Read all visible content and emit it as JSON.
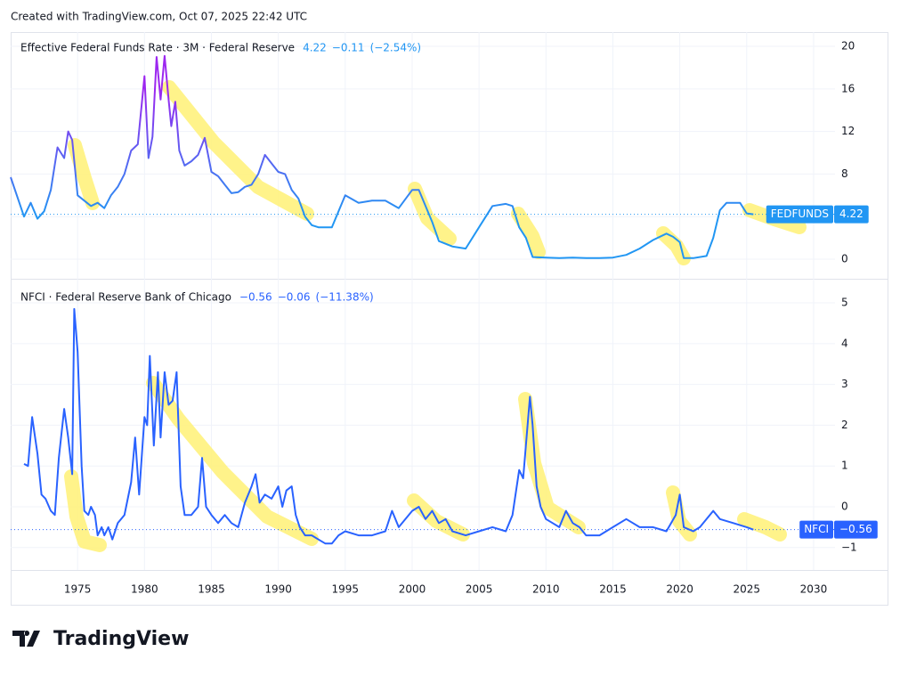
{
  "header": {
    "text": "Created with TradingView.com, Oct 07, 2025 22:42 UTC"
  },
  "footer": {
    "brand": "TradingView"
  },
  "chart_data": [
    {
      "type": "line",
      "title": "Effective Federal Funds Rate · 3M · Federal Reserve",
      "last_value": 4.22,
      "change": "−0.11",
      "change_pct": "(−2.54%)",
      "tag": "FEDFUNDS",
      "gradient": [
        "#2196f3",
        "#9c27f0"
      ],
      "x": [
        1970.0,
        1971.0,
        1971.5,
        1972.0,
        1972.5,
        1973.0,
        1973.5,
        1974.0,
        1974.3,
        1974.6,
        1975.0,
        1975.5,
        1976.0,
        1976.5,
        1977.0,
        1977.5,
        1978.0,
        1978.5,
        1979.0,
        1979.5,
        1980.0,
        1980.3,
        1980.6,
        1980.9,
        1981.2,
        1981.5,
        1981.8,
        1982.0,
        1982.3,
        1982.6,
        1983.0,
        1983.5,
        1984.0,
        1984.5,
        1985.0,
        1985.5,
        1986.0,
        1986.5,
        1987.0,
        1987.5,
        1988.0,
        1988.5,
        1989.0,
        1989.5,
        1990.0,
        1990.5,
        1991.0,
        1991.5,
        1992.0,
        1992.5,
        1993.0,
        1994.0,
        1994.5,
        1995.0,
        1996.0,
        1997.0,
        1998.0,
        1999.0,
        2000.0,
        2000.5,
        2001.0,
        2001.5,
        2002.0,
        2003.0,
        2004.0,
        2005.0,
        2006.0,
        2007.0,
        2007.5,
        2008.0,
        2008.5,
        2009.0,
        2010.0,
        2011.0,
        2012.0,
        2013.0,
        2014.0,
        2015.0,
        2016.0,
        2017.0,
        2018.0,
        2019.0,
        2019.5,
        2020.0,
        2020.3,
        2021.0,
        2022.0,
        2022.5,
        2023.0,
        2023.5,
        2024.0,
        2024.5,
        2025.0,
        2025.5
      ],
      "series": [
        {
          "name": "FEDFUNDS",
          "color": "#2196f3",
          "values": [
            7.7,
            4.0,
            5.3,
            3.8,
            4.5,
            6.5,
            10.5,
            9.5,
            12.0,
            11.2,
            6.0,
            5.5,
            5.0,
            5.3,
            4.8,
            6.0,
            6.8,
            8.0,
            10.2,
            10.8,
            17.2,
            9.5,
            11.5,
            19.0,
            15.0,
            19.1,
            15.0,
            12.5,
            14.8,
            10.2,
            8.8,
            9.2,
            9.8,
            11.4,
            8.2,
            7.8,
            7.0,
            6.2,
            6.3,
            6.8,
            7.0,
            8.0,
            9.8,
            9.0,
            8.2,
            8.0,
            6.5,
            5.7,
            4.0,
            3.2,
            3.0,
            3.0,
            4.5,
            6.0,
            5.3,
            5.5,
            5.5,
            4.8,
            6.5,
            6.5,
            5.0,
            3.5,
            1.7,
            1.2,
            1.0,
            3.0,
            5.0,
            5.2,
            5.0,
            3.0,
            2.0,
            0.2,
            0.15,
            0.1,
            0.15,
            0.1,
            0.1,
            0.15,
            0.4,
            1.0,
            1.8,
            2.4,
            2.1,
            1.6,
            0.1,
            0.1,
            0.3,
            2.0,
            4.6,
            5.3,
            5.3,
            5.3,
            4.3,
            4.22
          ]
        }
      ],
      "xlim": [
        1970,
        2031.6
      ],
      "ylim": [
        -1.84,
        21.34
      ],
      "yticks": [
        0,
        4,
        8,
        12,
        16,
        20
      ],
      "grid": true
    },
    {
      "type": "line",
      "title": "NFCI · Federal Reserve Bank of Chicago",
      "last_value": -0.56,
      "last_label": "−0.56",
      "change": "−0.06",
      "change_pct": "(−11.38%)",
      "tag": "NFCI",
      "x": [
        1971.0,
        1971.3,
        1971.6,
        1972.0,
        1972.3,
        1972.6,
        1973.0,
        1973.3,
        1973.6,
        1974.0,
        1974.3,
        1974.6,
        1974.75,
        1975.0,
        1975.3,
        1975.5,
        1975.8,
        1976.0,
        1976.3,
        1976.5,
        1976.8,
        1977.0,
        1977.3,
        1977.6,
        1978.0,
        1978.5,
        1979.0,
        1979.3,
        1979.6,
        1980.0,
        1980.2,
        1980.4,
        1980.7,
        1981.0,
        1981.2,
        1981.5,
        1981.8,
        1982.1,
        1982.4,
        1982.7,
        1983.0,
        1983.5,
        1984.0,
        1984.3,
        1984.6,
        1985.0,
        1985.5,
        1986.0,
        1986.5,
        1987.0,
        1987.5,
        1988.0,
        1988.3,
        1988.6,
        1989.0,
        1989.5,
        1990.0,
        1990.3,
        1990.6,
        1991.0,
        1991.3,
        1991.6,
        1992.0,
        1992.5,
        1993.0,
        1993.5,
        1994.0,
        1994.5,
        1995.0,
        1996.0,
        1997.0,
        1998.0,
        1998.5,
        1999.0,
        2000.0,
        2000.5,
        2001.0,
        2001.5,
        2002.0,
        2002.5,
        2003.0,
        2004.0,
        2005.0,
        2006.0,
        2007.0,
        2007.5,
        2008.0,
        2008.3,
        2008.8,
        2009.0,
        2009.3,
        2009.6,
        2010.0,
        2010.5,
        2011.0,
        2011.5,
        2012.0,
        2012.5,
        2013.0,
        2014.0,
        2015.0,
        2016.0,
        2016.5,
        2017.0,
        2018.0,
        2019.0,
        2019.7,
        2020.0,
        2020.3,
        2021.0,
        2021.5,
        2022.0,
        2022.5,
        2023.0,
        2024.0,
        2025.0,
        2025.5
      ],
      "series": [
        {
          "name": "NFCI",
          "color": "#2962ff",
          "values": [
            1.05,
            1.0,
            2.2,
            1.3,
            0.3,
            0.2,
            -0.1,
            -0.2,
            1.2,
            2.4,
            1.7,
            0.8,
            4.85,
            3.8,
            1.0,
            -0.1,
            -0.2,
            0.0,
            -0.2,
            -0.7,
            -0.5,
            -0.7,
            -0.5,
            -0.8,
            -0.4,
            -0.2,
            0.6,
            1.7,
            0.3,
            2.2,
            2.0,
            3.7,
            1.5,
            3.3,
            1.7,
            3.3,
            2.5,
            2.6,
            3.3,
            0.5,
            -0.2,
            -0.2,
            0.0,
            1.2,
            0.0,
            -0.2,
            -0.4,
            -0.2,
            -0.4,
            -0.5,
            0.1,
            0.5,
            0.8,
            0.1,
            0.3,
            0.2,
            0.5,
            0.0,
            0.4,
            0.5,
            -0.2,
            -0.5,
            -0.7,
            -0.7,
            -0.8,
            -0.9,
            -0.9,
            -0.7,
            -0.6,
            -0.7,
            -0.7,
            -0.6,
            -0.1,
            -0.5,
            -0.1,
            0.0,
            -0.3,
            -0.1,
            -0.4,
            -0.3,
            -0.6,
            -0.7,
            -0.6,
            -0.5,
            -0.6,
            -0.2,
            0.9,
            0.7,
            2.7,
            2.0,
            0.5,
            0.0,
            -0.3,
            -0.4,
            -0.5,
            -0.1,
            -0.4,
            -0.5,
            -0.7,
            -0.7,
            -0.5,
            -0.3,
            -0.4,
            -0.5,
            -0.5,
            -0.6,
            -0.2,
            0.3,
            -0.5,
            -0.6,
            -0.5,
            -0.3,
            -0.1,
            -0.3,
            -0.4,
            -0.5,
            -0.56
          ]
        }
      ],
      "xlim": [
        1970,
        2031.6
      ],
      "ylim": [
        -1.55,
        5.59
      ],
      "yticks": [
        {
          "value": -1,
          "label": "−1"
        },
        0,
        1,
        2,
        3,
        4,
        5
      ],
      "xticks": [
        1975,
        1980,
        1985,
        1990,
        1995,
        2000,
        2005,
        2010,
        2015,
        2020,
        2025,
        2030
      ],
      "grid": true
    }
  ]
}
